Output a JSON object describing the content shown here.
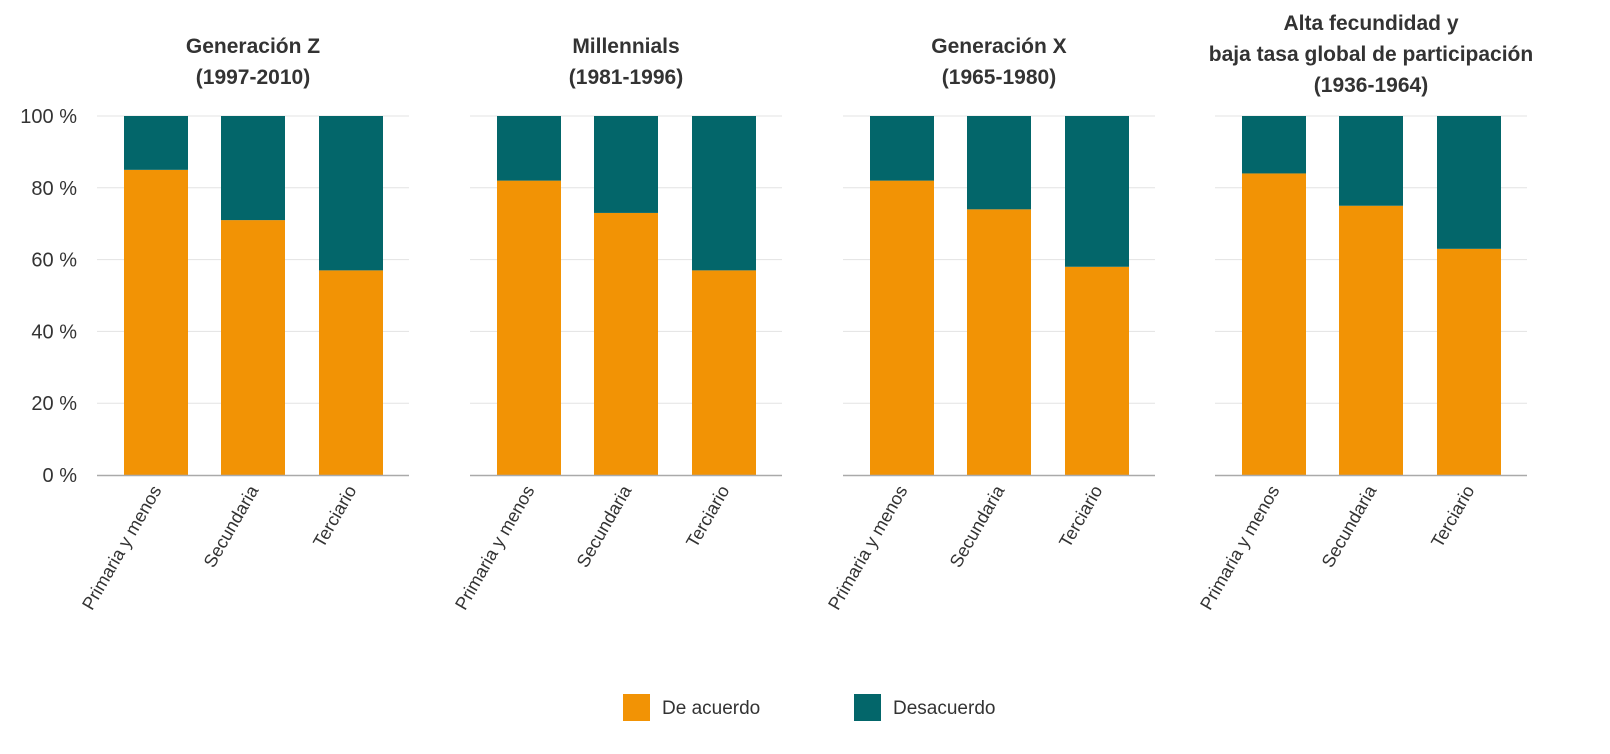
{
  "chart_data": {
    "type": "bar",
    "stacked": true,
    "ylim": [
      0,
      100
    ],
    "yticks": [
      "0 %",
      "20 %",
      "40 %",
      "60 %",
      "80 %",
      "100 %"
    ],
    "grid": true,
    "legend_position": "bottom",
    "colors": {
      "De acuerdo": "#f29305",
      "Desacuerdo": "#03666a"
    },
    "categories": [
      "Primaria y menos",
      "Secundaria",
      "Terciario"
    ],
    "legend": [
      "De acuerdo",
      "Desacuerdo"
    ],
    "panels": [
      {
        "title": [
          "Generación Z",
          "(1997-2010)"
        ],
        "series": [
          {
            "name": "De acuerdo",
            "values": [
              85,
              71,
              57
            ]
          },
          {
            "name": "Desacuerdo",
            "values": [
              15,
              29,
              43
            ]
          }
        ]
      },
      {
        "title": [
          "Millennials",
          "(1981-1996)"
        ],
        "series": [
          {
            "name": "De acuerdo",
            "values": [
              82,
              73,
              57
            ]
          },
          {
            "name": "Desacuerdo",
            "values": [
              18,
              27,
              43
            ]
          }
        ]
      },
      {
        "title": [
          "Generación X",
          "(1965-1980)"
        ],
        "series": [
          {
            "name": "De acuerdo",
            "values": [
              82,
              74,
              58
            ]
          },
          {
            "name": "Desacuerdo",
            "values": [
              18,
              26,
              42
            ]
          }
        ]
      },
      {
        "title": [
          "Alta fecundidad y",
          "baja tasa global de participación",
          "(1936-1964)"
        ],
        "series": [
          {
            "name": "De acuerdo",
            "values": [
              84,
              75,
              63
            ]
          },
          {
            "name": "Desacuerdo",
            "values": [
              16,
              25,
              37
            ]
          }
        ]
      }
    ]
  }
}
